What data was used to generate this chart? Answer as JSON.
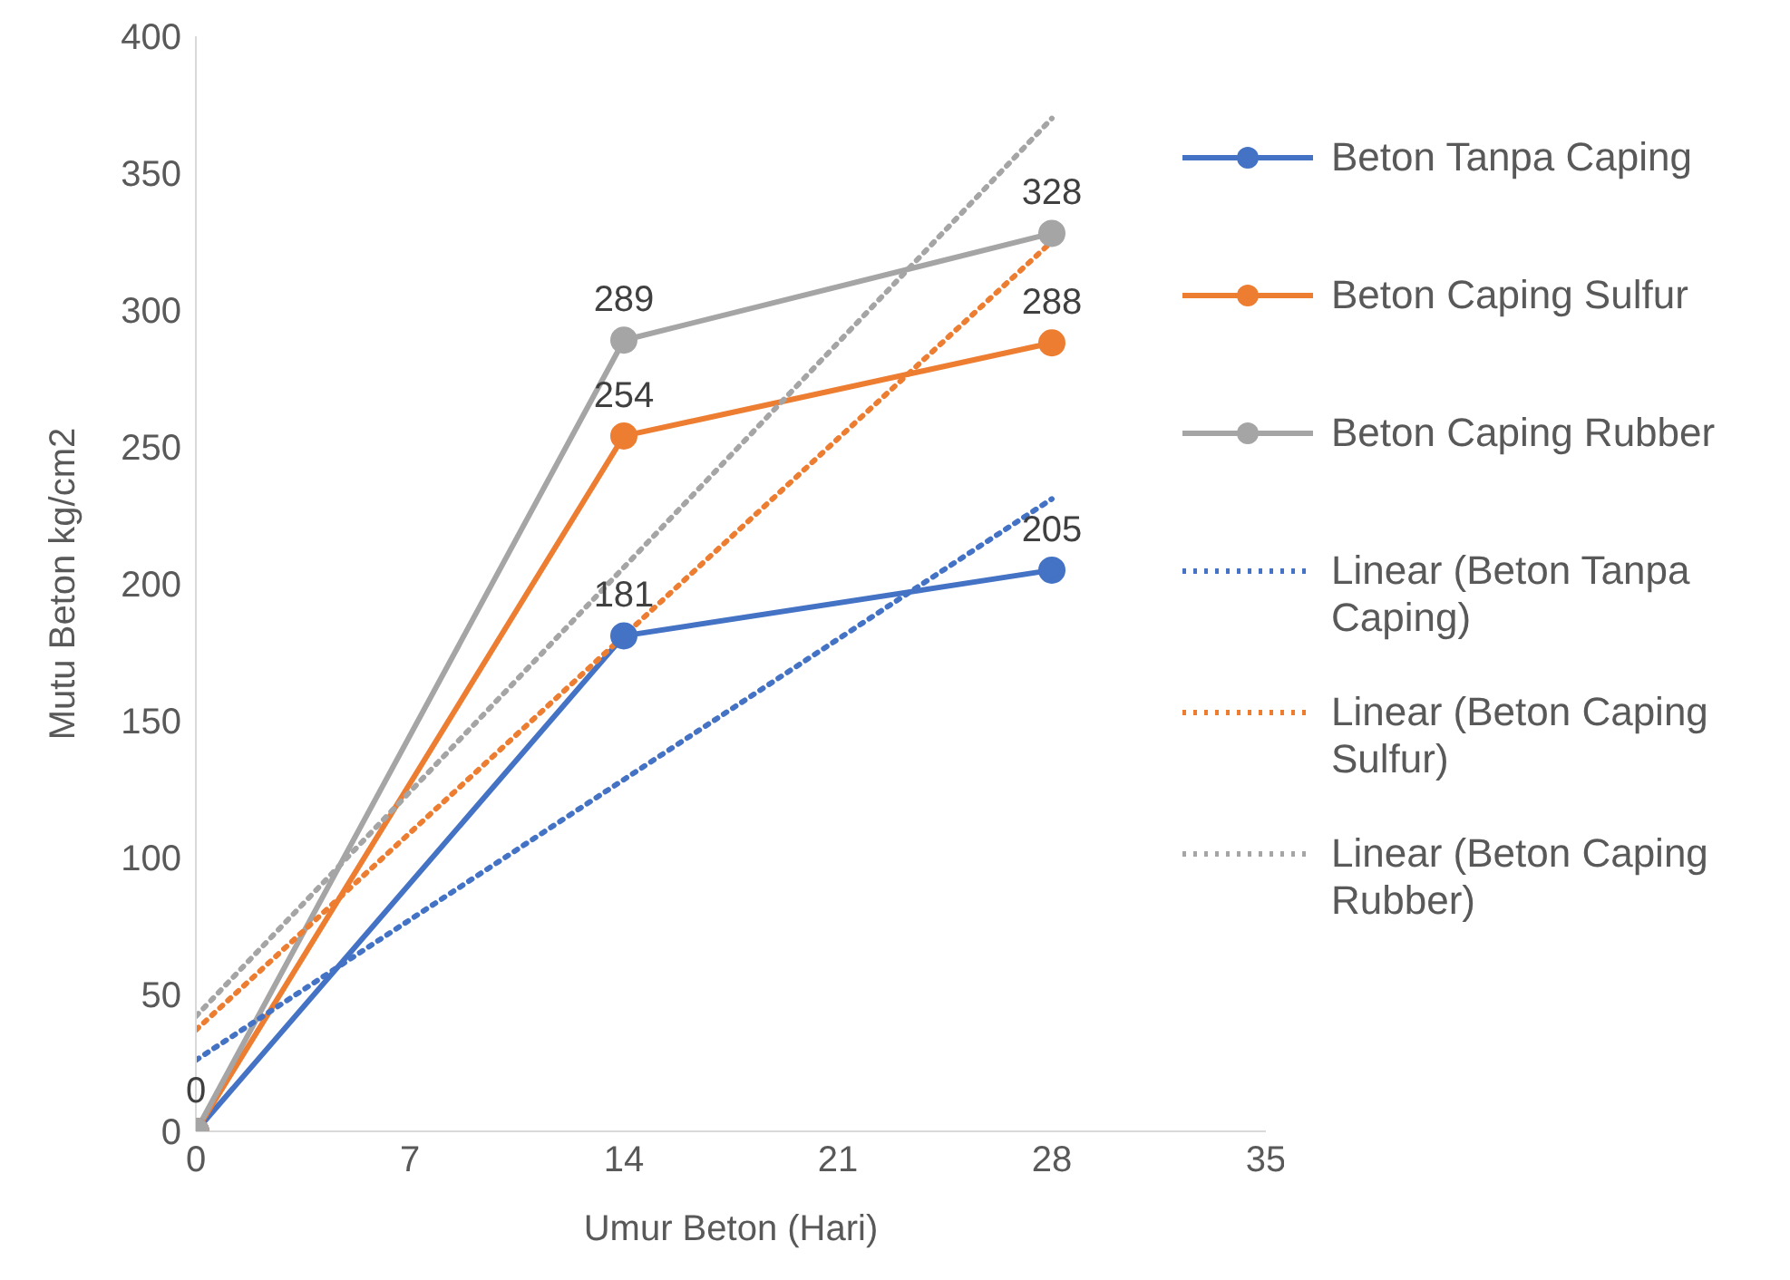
{
  "chart_data": {
    "type": "line",
    "xlabel": "Umur Beton (Hari)",
    "ylabel": "Mutu Beton kg/cm2",
    "x": [
      0,
      14,
      28
    ],
    "xlim": [
      0,
      35
    ],
    "xticks": [
      0,
      7,
      14,
      21,
      28,
      35
    ],
    "ylim": [
      0,
      400
    ],
    "yticks": [
      0,
      50,
      100,
      150,
      200,
      250,
      300,
      350,
      400
    ],
    "grid": false,
    "legend": "right",
    "marker": "circle",
    "line_style": "solid",
    "series": [
      {
        "name": "Beton Tanpa Caping",
        "color": "#4472c4",
        "values": [
          0,
          181,
          205
        ],
        "value_labels": [
          "0",
          "181",
          "205"
        ]
      },
      {
        "name": "Beton Caping Sulfur",
        "color": "#ed7d31",
        "values": [
          0,
          254,
          288
        ],
        "value_labels": [
          null,
          "254",
          "288"
        ]
      },
      {
        "name": "Beton Caping Rubber",
        "color": "#a5a5a5",
        "values": [
          0,
          289,
          328
        ],
        "value_labels": [
          null,
          "289",
          "328"
        ]
      },
      {
        "name": "Linear (Beton Tanpa Caping)",
        "color": "#4472c4",
        "values": [
          26,
          null,
          231
        ],
        "line_style": "dotted",
        "marker": "none"
      },
      {
        "name": "Linear (Beton Caping Sulfur)",
        "color": "#ed7d31",
        "values": [
          37,
          null,
          325
        ],
        "line_style": "dotted",
        "marker": "none"
      },
      {
        "name": "Linear (Beton Caping Rubber)",
        "color": "#a5a5a5",
        "values": [
          42,
          null,
          370
        ],
        "line_style": "dotted",
        "marker": "none"
      }
    ]
  }
}
